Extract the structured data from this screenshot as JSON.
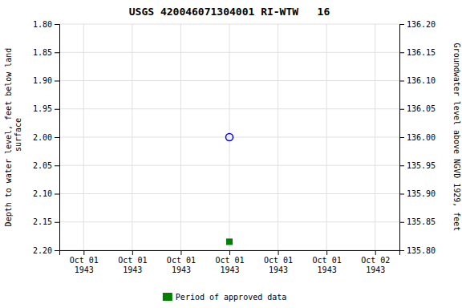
{
  "chart_data": {
    "type": "scatter",
    "title": "USGS 420046071304001 RI-WTW   16",
    "ylabel": "Depth to water level, feet below land\n surface",
    "y2label": "Groundwater level above NGVD 1929, feet",
    "categories": [
      "Oct 01\n1943",
      "Oct 01\n1943",
      "Oct 01\n1943",
      "Oct 01\n1943",
      "Oct 01\n1943",
      "Oct 01\n1943",
      "Oct 02\n1943"
    ],
    "series": [
      {
        "color": "blue",
        "marker": "open-circle",
        "values": [
          null,
          null,
          null,
          2.0,
          null,
          null,
          null
        ]
      },
      {
        "name": "Period of approved data",
        "color": "green",
        "marker": "square",
        "values": [
          null,
          null,
          null,
          2.185,
          null,
          null,
          null
        ]
      }
    ],
    "ylim": [
      2.2,
      1.8
    ],
    "yticks": [
      {
        "value": 1.8,
        "label": "1.80"
      },
      1.85,
      {
        "value": 1.9,
        "label": "1.90"
      },
      1.95,
      {
        "value": 2.0,
        "label": "2.00"
      },
      2.05,
      {
        "value": 2.1,
        "label": "2.10"
      },
      2.15,
      {
        "value": 2.2,
        "label": "2.20"
      }
    ],
    "y2lim": [
      135.8,
      136.2
    ],
    "y2ticks": [
      {
        "value": 135.8,
        "label": "135.80"
      },
      135.85,
      {
        "value": 135.9,
        "label": "135.90"
      },
      135.95,
      {
        "value": 136.0,
        "label": "136.00"
      },
      136.05,
      {
        "value": 136.1,
        "label": "136.10"
      },
      136.15,
      {
        "value": 136.2,
        "label": "136.20"
      }
    ],
    "grid": true,
    "legend": "bottom"
  }
}
